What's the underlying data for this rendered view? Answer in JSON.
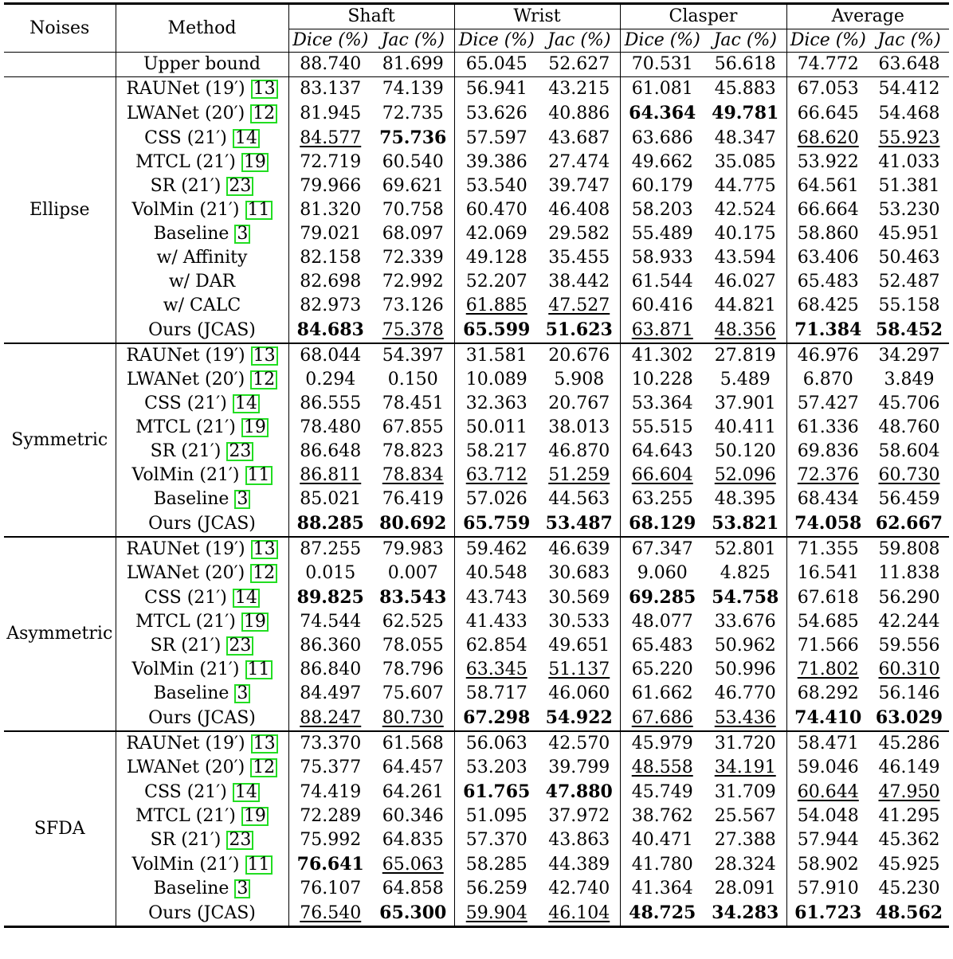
{
  "header": {
    "noises": "Noises",
    "method": "Method",
    "groups": [
      "Shaft",
      "Wrist",
      "Clasper",
      "Average"
    ],
    "metrics": [
      "Dice (%)",
      "Jac (%)",
      "Dice (%)",
      "Jac (%)",
      "Dice (%)",
      "Jac (%)",
      "Dice (%)",
      "Jac (%)"
    ]
  },
  "upper_bound": {
    "method": "Upper bound",
    "values": [
      "88.740",
      "81.699",
      "65.045",
      "52.627",
      "70.531",
      "56.618",
      "74.772",
      "63.648"
    ]
  },
  "sections": [
    {
      "noise": "Ellipse",
      "rows": [
        {
          "method": "RAUNet (19′)",
          "ref": "13",
          "values": [
            "83.137",
            "74.139",
            "56.941",
            "43.215",
            "61.081",
            "45.883",
            "67.053",
            "54.412"
          ],
          "fmt": [
            "",
            "",
            "",
            "",
            "",
            "",
            "",
            ""
          ]
        },
        {
          "method": "LWANet (20′)",
          "ref": "12",
          "values": [
            "81.945",
            "72.735",
            "53.626",
            "40.886",
            "64.364",
            "49.781",
            "66.645",
            "54.468"
          ],
          "fmt": [
            "",
            "",
            "",
            "",
            "b",
            "b",
            "",
            ""
          ]
        },
        {
          "method": "CSS (21′)",
          "ref": "14",
          "values": [
            "84.577",
            "75.736",
            "57.597",
            "43.687",
            "63.686",
            "48.347",
            "68.620",
            "55.923"
          ],
          "fmt": [
            "u",
            "b",
            "",
            "",
            "",
            "",
            "u",
            "u"
          ]
        },
        {
          "method": "MTCL (21′)",
          "ref": "19",
          "values": [
            "72.719",
            "60.540",
            "39.386",
            "27.474",
            "49.662",
            "35.085",
            "53.922",
            "41.033"
          ],
          "fmt": [
            "",
            "",
            "",
            "",
            "",
            "",
            "",
            ""
          ]
        },
        {
          "method": "SR (21′)",
          "ref": "23",
          "values": [
            "79.966",
            "69.621",
            "53.540",
            "39.747",
            "60.179",
            "44.775",
            "64.561",
            "51.381"
          ],
          "fmt": [
            "",
            "",
            "",
            "",
            "",
            "",
            "",
            ""
          ]
        },
        {
          "method": "VolMin (21′)",
          "ref": "11",
          "values": [
            "81.320",
            "70.758",
            "60.470",
            "46.408",
            "58.203",
            "42.524",
            "66.664",
            "53.230"
          ],
          "fmt": [
            "",
            "",
            "",
            "",
            "",
            "",
            "",
            ""
          ]
        },
        {
          "method": "Baseline",
          "ref": "3",
          "values": [
            "79.021",
            "68.097",
            "42.069",
            "29.582",
            "55.489",
            "40.175",
            "58.860",
            "45.951"
          ],
          "fmt": [
            "",
            "",
            "",
            "",
            "",
            "",
            "",
            ""
          ]
        },
        {
          "method": "w/ Affinity",
          "ref": "",
          "values": [
            "82.158",
            "72.339",
            "49.128",
            "35.455",
            "58.933",
            "43.594",
            "63.406",
            "50.463"
          ],
          "fmt": [
            "",
            "",
            "",
            "",
            "",
            "",
            "",
            ""
          ]
        },
        {
          "method": "w/ DAR",
          "ref": "",
          "values": [
            "82.698",
            "72.992",
            "52.207",
            "38.442",
            "61.544",
            "46.027",
            "65.483",
            "52.487"
          ],
          "fmt": [
            "",
            "",
            "",
            "",
            "",
            "",
            "",
            ""
          ]
        },
        {
          "method": "w/ CALC",
          "ref": "",
          "values": [
            "82.973",
            "73.126",
            "61.885",
            "47.527",
            "60.416",
            "44.821",
            "68.425",
            "55.158"
          ],
          "fmt": [
            "",
            "",
            "u",
            "u",
            "",
            "",
            "",
            ""
          ]
        },
        {
          "method": "Ours (JCAS)",
          "ref": "",
          "values": [
            "84.683",
            "75.378",
            "65.599",
            "51.623",
            "63.871",
            "48.356",
            "71.384",
            "58.452"
          ],
          "fmt": [
            "b",
            "u",
            "b",
            "b",
            "u",
            "u",
            "b",
            "b"
          ]
        }
      ]
    },
    {
      "noise": "Symmetric",
      "rows": [
        {
          "method": "RAUNet (19′)",
          "ref": "13",
          "values": [
            "68.044",
            "54.397",
            "31.581",
            "20.676",
            "41.302",
            "27.819",
            "46.976",
            "34.297"
          ],
          "fmt": [
            "",
            "",
            "",
            "",
            "",
            "",
            "",
            ""
          ]
        },
        {
          "method": "LWANet (20′)",
          "ref": "12",
          "values": [
            "0.294",
            "0.150",
            "10.089",
            "5.908",
            "10.228",
            "5.489",
            "6.870",
            "3.849"
          ],
          "fmt": [
            "",
            "",
            "",
            "",
            "",
            "",
            "",
            ""
          ]
        },
        {
          "method": "CSS (21′)",
          "ref": "14",
          "values": [
            "86.555",
            "78.451",
            "32.363",
            "20.767",
            "53.364",
            "37.901",
            "57.427",
            "45.706"
          ],
          "fmt": [
            "",
            "",
            "",
            "",
            "",
            "",
            "",
            ""
          ]
        },
        {
          "method": "MTCL (21′)",
          "ref": "19",
          "values": [
            "78.480",
            "67.855",
            "50.011",
            "38.013",
            "55.515",
            "40.411",
            "61.336",
            "48.760"
          ],
          "fmt": [
            "",
            "",
            "",
            "",
            "",
            "",
            "",
            ""
          ]
        },
        {
          "method": "SR (21′)",
          "ref": "23",
          "values": [
            "86.648",
            "78.823",
            "58.217",
            "46.870",
            "64.643",
            "50.120",
            "69.836",
            "58.604"
          ],
          "fmt": [
            "",
            "",
            "",
            "",
            "",
            "",
            "",
            ""
          ]
        },
        {
          "method": "VolMin (21′)",
          "ref": "11",
          "values": [
            "86.811",
            "78.834",
            "63.712",
            "51.259",
            "66.604",
            "52.096",
            "72.376",
            "60.730"
          ],
          "fmt": [
            "u",
            "u",
            "u",
            "u",
            "u",
            "u",
            "u",
            "u"
          ]
        },
        {
          "method": "Baseline",
          "ref": "3",
          "values": [
            "85.021",
            "76.419",
            "57.026",
            "44.563",
            "63.255",
            "48.395",
            "68.434",
            "56.459"
          ],
          "fmt": [
            "",
            "",
            "",
            "",
            "",
            "",
            "",
            ""
          ]
        },
        {
          "method": "Ours (JCAS)",
          "ref": "",
          "values": [
            "88.285",
            "80.692",
            "65.759",
            "53.487",
            "68.129",
            "53.821",
            "74.058",
            "62.667"
          ],
          "fmt": [
            "b",
            "b",
            "b",
            "b",
            "b",
            "b",
            "b",
            "b"
          ]
        }
      ]
    },
    {
      "noise": "Asymmetric",
      "rows": [
        {
          "method": "RAUNet (19′)",
          "ref": "13",
          "values": [
            "87.255",
            "79.983",
            "59.462",
            "46.639",
            "67.347",
            "52.801",
            "71.355",
            "59.808"
          ],
          "fmt": [
            "",
            "",
            "",
            "",
            "",
            "",
            "",
            ""
          ]
        },
        {
          "method": "LWANet (20′)",
          "ref": "12",
          "values": [
            "0.015",
            "0.007",
            "40.548",
            "30.683",
            "9.060",
            "4.825",
            "16.541",
            "11.838"
          ],
          "fmt": [
            "",
            "",
            "",
            "",
            "",
            "",
            "",
            ""
          ]
        },
        {
          "method": "CSS (21′)",
          "ref": "14",
          "values": [
            "89.825",
            "83.543",
            "43.743",
            "30.569",
            "69.285",
            "54.758",
            "67.618",
            "56.290"
          ],
          "fmt": [
            "b",
            "b",
            "",
            "",
            "b",
            "b",
            "",
            ""
          ]
        },
        {
          "method": "MTCL (21′)",
          "ref": "19",
          "values": [
            "74.544",
            "62.525",
            "41.433",
            "30.533",
            "48.077",
            "33.676",
            "54.685",
            "42.244"
          ],
          "fmt": [
            "",
            "",
            "",
            "",
            "",
            "",
            "",
            ""
          ]
        },
        {
          "method": "SR (21′)",
          "ref": "23",
          "values": [
            "86.360",
            "78.055",
            "62.854",
            "49.651",
            "65.483",
            "50.962",
            "71.566",
            "59.556"
          ],
          "fmt": [
            "",
            "",
            "",
            "",
            "",
            "",
            "",
            ""
          ]
        },
        {
          "method": "VolMin (21′)",
          "ref": "11",
          "values": [
            "86.840",
            "78.796",
            "63.345",
            "51.137",
            "65.220",
            "50.996",
            "71.802",
            "60.310"
          ],
          "fmt": [
            "",
            "",
            "u",
            "u",
            "",
            "",
            "u",
            "u"
          ]
        },
        {
          "method": "Baseline",
          "ref": "3",
          "values": [
            "84.497",
            "75.607",
            "58.717",
            "46.060",
            "61.662",
            "46.770",
            "68.292",
            "56.146"
          ],
          "fmt": [
            "",
            "",
            "",
            "",
            "",
            "",
            "",
            ""
          ]
        },
        {
          "method": "Ours (JCAS)",
          "ref": "",
          "values": [
            "88.247",
            "80.730",
            "67.298",
            "54.922",
            "67.686",
            "53.436",
            "74.410",
            "63.029"
          ],
          "fmt": [
            "u",
            "u",
            "b",
            "b",
            "u",
            "u",
            "b",
            "b"
          ]
        }
      ]
    },
    {
      "noise": "SFDA",
      "rows": [
        {
          "method": "RAUNet (19′)",
          "ref": "13",
          "values": [
            "73.370",
            "61.568",
            "56.063",
            "42.570",
            "45.979",
            "31.720",
            "58.471",
            "45.286"
          ],
          "fmt": [
            "",
            "",
            "",
            "",
            "",
            "",
            "",
            ""
          ]
        },
        {
          "method": "LWANet (20′)",
          "ref": "12",
          "values": [
            "75.377",
            "64.457",
            "53.203",
            "39.799",
            "48.558",
            "34.191",
            "59.046",
            "46.149"
          ],
          "fmt": [
            "",
            "",
            "",
            "",
            "u",
            "u",
            "",
            ""
          ]
        },
        {
          "method": "CSS (21′)",
          "ref": "14",
          "values": [
            "74.419",
            "64.261",
            "61.765",
            "47.880",
            "45.749",
            "31.709",
            "60.644",
            "47.950"
          ],
          "fmt": [
            "",
            "",
            "b",
            "b",
            "",
            "",
            "u",
            "u"
          ]
        },
        {
          "method": "MTCL (21′)",
          "ref": "19",
          "values": [
            "72.289",
            "60.346",
            "51.095",
            "37.972",
            "38.762",
            "25.567",
            "54.048",
            "41.295"
          ],
          "fmt": [
            "",
            "",
            "",
            "",
            "",
            "",
            "",
            ""
          ]
        },
        {
          "method": "SR (21′)",
          "ref": "23",
          "values": [
            "75.992",
            "64.835",
            "57.370",
            "43.863",
            "40.471",
            "27.388",
            "57.944",
            "45.362"
          ],
          "fmt": [
            "",
            "",
            "",
            "",
            "",
            "",
            "",
            ""
          ]
        },
        {
          "method": "VolMin (21′)",
          "ref": "11",
          "values": [
            "76.641",
            "65.063",
            "58.285",
            "44.389",
            "41.780",
            "28.324",
            "58.902",
            "45.925"
          ],
          "fmt": [
            "b",
            "u",
            "",
            "",
            "",
            "",
            "",
            ""
          ]
        },
        {
          "method": "Baseline",
          "ref": "3",
          "values": [
            "76.107",
            "64.858",
            "56.259",
            "42.740",
            "41.364",
            "28.091",
            "57.910",
            "45.230"
          ],
          "fmt": [
            "",
            "",
            "",
            "",
            "",
            "",
            "",
            ""
          ]
        },
        {
          "method": "Ours (JCAS)",
          "ref": "",
          "values": [
            "76.540",
            "65.300",
            "59.904",
            "46.104",
            "48.725",
            "34.283",
            "61.723",
            "48.562"
          ],
          "fmt": [
            "u",
            "b",
            "u",
            "u",
            "b",
            "b",
            "b",
            "b"
          ]
        }
      ]
    }
  ]
}
